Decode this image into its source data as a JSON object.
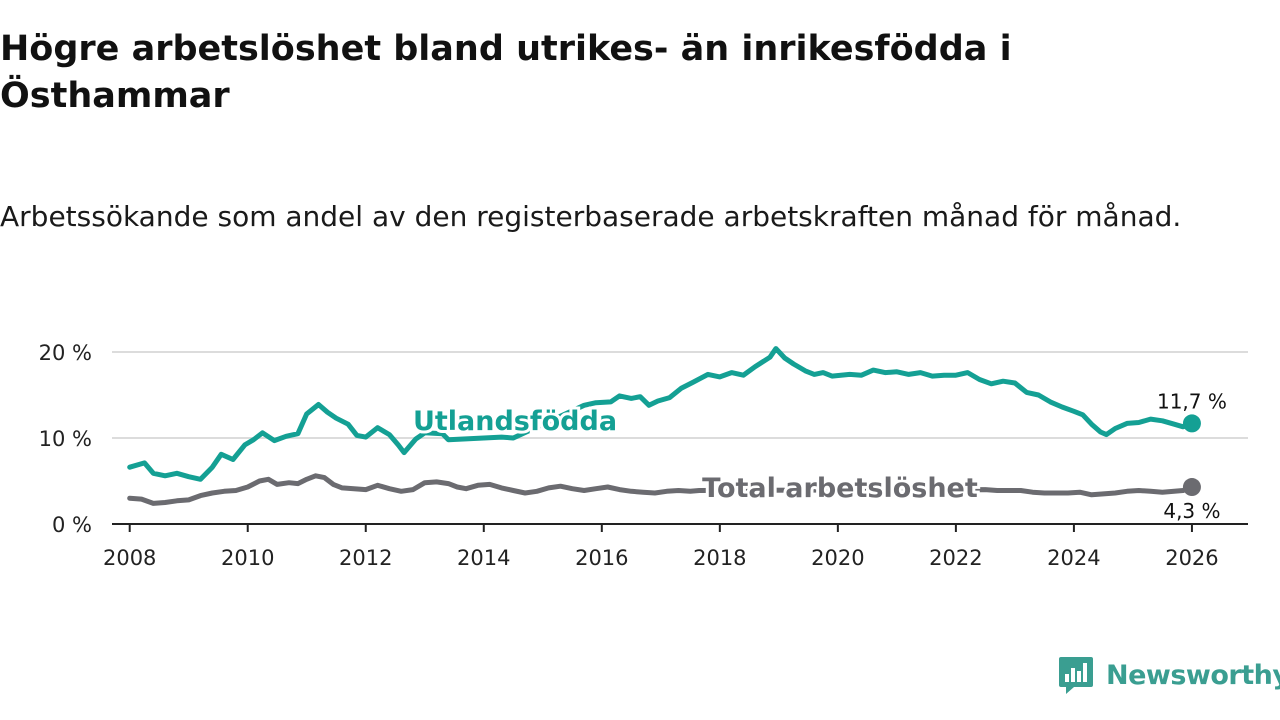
{
  "title": "Högre arbetslöshet bland utrikes- än inrikesfödda i Östhammar",
  "subtitle": "Arbetssökande som andel av den registerbaserade arbetskraften månad för månad.",
  "brand": {
    "name": "Newsworthy",
    "color": "#3a9e91"
  },
  "chart_data": {
    "type": "line",
    "title": "Högre arbetslöshet bland utrikes- än inrikesfödda i Östhammar",
    "xlabel": "",
    "ylabel": "",
    "xlim": [
      2007.7,
      2026.95
    ],
    "ylim": [
      0,
      20
    ],
    "x_ticks": [
      2008,
      2010,
      2012,
      2014,
      2016,
      2018,
      2020,
      2022,
      2024,
      2026
    ],
    "x_tick_labels": [
      "2008",
      "2010",
      "2012",
      "2014",
      "2016",
      "2018",
      "2020",
      "2022",
      "2024",
      "2026"
    ],
    "y_ticks": [
      0,
      10,
      20
    ],
    "y_tick_labels": [
      "0 %",
      "10 %",
      "20 %"
    ],
    "gridlines": true,
    "series": [
      {
        "name": "Utlandsfödda",
        "color": "#14a094",
        "end_label": "11,7 %",
        "label_position": "mid-left",
        "points": [
          [
            2008.0,
            6.6
          ],
          [
            2008.25,
            7.1
          ],
          [
            2008.4,
            5.9
          ],
          [
            2008.6,
            5.6
          ],
          [
            2008.8,
            5.9
          ],
          [
            2009.0,
            5.5
          ],
          [
            2009.2,
            5.2
          ],
          [
            2009.4,
            6.6
          ],
          [
            2009.55,
            8.1
          ],
          [
            2009.75,
            7.5
          ],
          [
            2009.95,
            9.2
          ],
          [
            2010.1,
            9.8
          ],
          [
            2010.25,
            10.6
          ],
          [
            2010.45,
            9.7
          ],
          [
            2010.65,
            10.2
          ],
          [
            2010.85,
            10.5
          ],
          [
            2011.0,
            12.8
          ],
          [
            2011.2,
            13.9
          ],
          [
            2011.35,
            13.0
          ],
          [
            2011.5,
            12.3
          ],
          [
            2011.7,
            11.6
          ],
          [
            2011.85,
            10.3
          ],
          [
            2012.0,
            10.1
          ],
          [
            2012.2,
            11.2
          ],
          [
            2012.4,
            10.4
          ],
          [
            2012.55,
            9.2
          ],
          [
            2012.65,
            8.3
          ],
          [
            2012.85,
            9.9
          ],
          [
            2013.0,
            10.6
          ],
          [
            2013.3,
            10.5
          ],
          [
            2013.4,
            9.8
          ],
          [
            2014.3,
            10.1
          ],
          [
            2014.5,
            10.0
          ],
          [
            2015.7,
            13.8
          ],
          [
            2015.9,
            14.1
          ],
          [
            2016.15,
            14.2
          ],
          [
            2016.3,
            14.9
          ],
          [
            2016.5,
            14.6
          ],
          [
            2016.65,
            14.8
          ],
          [
            2016.8,
            13.8
          ],
          [
            2016.95,
            14.3
          ],
          [
            2017.15,
            14.7
          ],
          [
            2017.35,
            15.8
          ],
          [
            2017.55,
            16.5
          ],
          [
            2017.8,
            17.4
          ],
          [
            2018.0,
            17.1
          ],
          [
            2018.2,
            17.6
          ],
          [
            2018.4,
            17.3
          ],
          [
            2018.6,
            18.3
          ],
          [
            2018.85,
            19.4
          ],
          [
            2018.95,
            20.4
          ],
          [
            2019.1,
            19.3
          ],
          [
            2019.25,
            18.6
          ],
          [
            2019.45,
            17.8
          ],
          [
            2019.6,
            17.4
          ],
          [
            2019.75,
            17.6
          ],
          [
            2019.9,
            17.2
          ],
          [
            2020.2,
            17.4
          ],
          [
            2020.4,
            17.3
          ],
          [
            2020.6,
            17.9
          ],
          [
            2020.8,
            17.6
          ],
          [
            2021.0,
            17.7
          ],
          [
            2021.2,
            17.4
          ],
          [
            2021.4,
            17.6
          ],
          [
            2021.6,
            17.2
          ],
          [
            2021.8,
            17.3
          ],
          [
            2022.0,
            17.3
          ],
          [
            2022.2,
            17.6
          ],
          [
            2022.4,
            16.8
          ],
          [
            2022.6,
            16.3
          ],
          [
            2022.8,
            16.6
          ],
          [
            2023.0,
            16.4
          ],
          [
            2023.2,
            15.3
          ],
          [
            2023.4,
            15.0
          ],
          [
            2023.6,
            14.2
          ],
          [
            2023.8,
            13.6
          ],
          [
            2024.0,
            13.1
          ],
          [
            2024.15,
            12.7
          ],
          [
            2024.3,
            11.6
          ],
          [
            2024.45,
            10.7
          ],
          [
            2024.55,
            10.4
          ],
          [
            2024.7,
            11.1
          ],
          [
            2024.9,
            11.7
          ],
          [
            2025.1,
            11.8
          ],
          [
            2025.3,
            12.2
          ],
          [
            2025.5,
            12.0
          ],
          [
            2025.7,
            11.6
          ],
          [
            2025.85,
            11.3
          ],
          [
            2026.0,
            11.7
          ]
        ]
      },
      {
        "name": "Total arbetslöshet",
        "color": "#6b6b70",
        "end_label": "4,3 %",
        "label_position": "mid-right",
        "points": [
          [
            2008.0,
            3.0
          ],
          [
            2008.2,
            2.9
          ],
          [
            2008.4,
            2.4
          ],
          [
            2008.6,
            2.5
          ],
          [
            2008.8,
            2.7
          ],
          [
            2009.0,
            2.8
          ],
          [
            2009.2,
            3.3
          ],
          [
            2009.4,
            3.6
          ],
          [
            2009.6,
            3.8
          ],
          [
            2009.8,
            3.9
          ],
          [
            2010.0,
            4.3
          ],
          [
            2010.2,
            5.0
          ],
          [
            2010.35,
            5.2
          ],
          [
            2010.5,
            4.6
          ],
          [
            2010.7,
            4.8
          ],
          [
            2010.85,
            4.7
          ],
          [
            2011.0,
            5.2
          ],
          [
            2011.15,
            5.6
          ],
          [
            2011.3,
            5.4
          ],
          [
            2011.45,
            4.6
          ],
          [
            2011.6,
            4.2
          ],
          [
            2011.8,
            4.1
          ],
          [
            2012.0,
            4.0
          ],
          [
            2012.2,
            4.5
          ],
          [
            2012.4,
            4.1
          ],
          [
            2012.6,
            3.8
          ],
          [
            2012.8,
            4.0
          ],
          [
            2013.0,
            4.8
          ],
          [
            2013.2,
            4.9
          ],
          [
            2013.4,
            4.7
          ],
          [
            2013.55,
            4.3
          ],
          [
            2013.7,
            4.1
          ],
          [
            2013.9,
            4.5
          ],
          [
            2014.1,
            4.6
          ],
          [
            2014.3,
            4.2
          ],
          [
            2014.5,
            3.9
          ],
          [
            2014.7,
            3.6
          ],
          [
            2014.9,
            3.8
          ],
          [
            2015.1,
            4.2
          ],
          [
            2015.3,
            4.4
          ],
          [
            2015.5,
            4.1
          ],
          [
            2015.7,
            3.9
          ],
          [
            2015.9,
            4.1
          ],
          [
            2016.1,
            4.3
          ],
          [
            2016.3,
            4.0
          ],
          [
            2016.5,
            3.8
          ],
          [
            2016.7,
            3.7
          ],
          [
            2016.9,
            3.6
          ],
          [
            2017.1,
            3.8
          ],
          [
            2017.3,
            3.9
          ],
          [
            2017.5,
            3.8
          ],
          [
            2017.65,
            3.9
          ],
          [
            2022.5,
            4.0
          ],
          [
            2022.7,
            3.9
          ],
          [
            2022.9,
            3.9
          ],
          [
            2023.1,
            3.9
          ],
          [
            2023.3,
            3.7
          ],
          [
            2023.5,
            3.6
          ],
          [
            2023.7,
            3.6
          ],
          [
            2023.9,
            3.6
          ],
          [
            2024.1,
            3.7
          ],
          [
            2024.3,
            3.4
          ],
          [
            2024.5,
            3.5
          ],
          [
            2024.7,
            3.6
          ],
          [
            2024.9,
            3.8
          ],
          [
            2025.1,
            3.9
          ],
          [
            2025.3,
            3.8
          ],
          [
            2025.5,
            3.7
          ],
          [
            2025.7,
            3.8
          ],
          [
            2025.85,
            3.9
          ],
          [
            2026.0,
            4.3
          ]
        ]
      }
    ]
  }
}
